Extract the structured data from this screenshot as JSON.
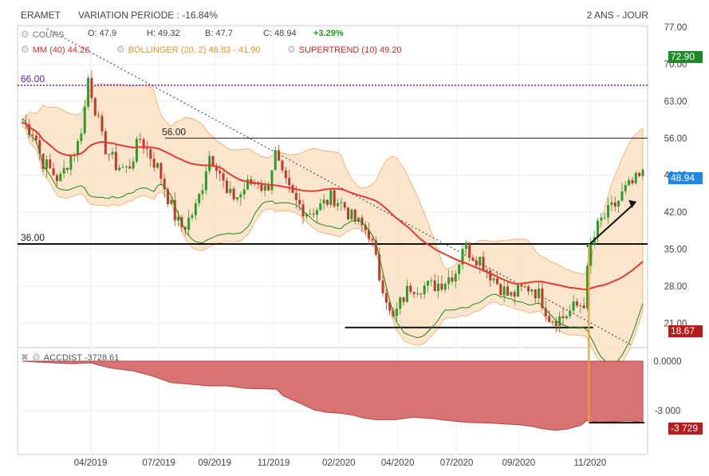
{
  "header": {
    "symbol": "ERAMET",
    "variation": "VARIATION PERIODE : -16.84%",
    "period": "2 ANS - JOUR"
  },
  "legend": {
    "cours_label": "COURS",
    "open": "O: 47.9",
    "high": "H: 49.32",
    "low": "B: 47.7",
    "close": "C: 48.94",
    "change": "+3.29%",
    "mm": "MM (40)",
    "mm_value": "44.26",
    "bollinger": "BOLLINGER (20, 2)",
    "bollinger_value": "48.83 - 41.90",
    "supertrend": "SUPERTREND (10)",
    "supertrend_value": "49.20",
    "accdist": "ACCDIST",
    "accdist_value": "-3728.61"
  },
  "colors": {
    "up": "#2a9d2a",
    "down": "#c0392b",
    "mm": "#e53935",
    "bollinger_fill": "#fbe3c8",
    "bollinger_line": "#f0a050",
    "supertrend": "#1b8a1b",
    "level_66": "#6a1bb5",
    "accdist_fill": "#d97373",
    "tag_green": "#1f8a2a",
    "tag_red": "#b71c1c",
    "tag_blue": "#1e88e5",
    "vline": "#f39c32"
  },
  "price_tags": {
    "top": "72.90",
    "current": "48.94",
    "bottom": "18.67",
    "accdist": "-3 729"
  },
  "annotations": {
    "level_66": "66.00",
    "level_56": "56.00",
    "level_36": "36.00"
  },
  "chart_data": [
    {
      "type": "candlestick",
      "ylim": [
        17,
        77
      ],
      "yticks": [
        "77.00",
        "70.00",
        "63.00",
        "56.00",
        "49.00",
        "42.00",
        "35.00",
        "28.00",
        "21.00"
      ],
      "xtick_labels": [
        "04/2019",
        "07/2019",
        "09/2019",
        "11/2019",
        "02/2020",
        "04/2020",
        "07/2020",
        "09/2020",
        "11/2020"
      ],
      "horizontal_levels": [
        66,
        56,
        36,
        20.2
      ],
      "close_path": [
        [
          0,
          59
        ],
        [
          0.02,
          57
        ],
        [
          0.03,
          52
        ],
        [
          0.045,
          50
        ],
        [
          0.06,
          48
        ],
        [
          0.075,
          52
        ],
        [
          0.09,
          55
        ],
        [
          0.1,
          61
        ],
        [
          0.105,
          68
        ],
        [
          0.115,
          63
        ],
        [
          0.13,
          55
        ],
        [
          0.15,
          51
        ],
        [
          0.17,
          50
        ],
        [
          0.19,
          56
        ],
        [
          0.2,
          54
        ],
        [
          0.22,
          50
        ],
        [
          0.24,
          43
        ],
        [
          0.25,
          40
        ],
        [
          0.26,
          39
        ],
        [
          0.28,
          43
        ],
        [
          0.29,
          47
        ],
        [
          0.3,
          53
        ],
        [
          0.315,
          51
        ],
        [
          0.33,
          45
        ],
        [
          0.35,
          45
        ],
        [
          0.36,
          47
        ],
        [
          0.38,
          48
        ],
        [
          0.39,
          46
        ],
        [
          0.4,
          48
        ],
        [
          0.405,
          54
        ],
        [
          0.42,
          48
        ],
        [
          0.44,
          44
        ],
        [
          0.46,
          42
        ],
        [
          0.48,
          43
        ],
        [
          0.5,
          45
        ],
        [
          0.52,
          43
        ],
        [
          0.53,
          41
        ],
        [
          0.55,
          39
        ],
        [
          0.56,
          38
        ],
        [
          0.575,
          30
        ],
        [
          0.585,
          27
        ],
        [
          0.595,
          21
        ],
        [
          0.61,
          25
        ],
        [
          0.625,
          28
        ],
        [
          0.645,
          28
        ],
        [
          0.66,
          28
        ],
        [
          0.68,
          29
        ],
        [
          0.7,
          31
        ],
        [
          0.71,
          36
        ],
        [
          0.725,
          34
        ],
        [
          0.74,
          33
        ],
        [
          0.75,
          31
        ],
        [
          0.77,
          28
        ],
        [
          0.785,
          26
        ],
        [
          0.8,
          27
        ],
        [
          0.82,
          28
        ],
        [
          0.835,
          26
        ],
        [
          0.85,
          22
        ],
        [
          0.87,
          22
        ],
        [
          0.89,
          24
        ],
        [
          0.905,
          25
        ],
        [
          0.915,
          35
        ],
        [
          0.93,
          40
        ],
        [
          0.945,
          42
        ],
        [
          0.96,
          44
        ],
        [
          0.97,
          46
        ],
        [
          0.98,
          47
        ],
        [
          1,
          48.94
        ]
      ]
    },
    {
      "type": "area",
      "name": "ACCDIST",
      "yticks": [
        "0.0000",
        "-3 000"
      ],
      "ylim": [
        -4300,
        0
      ],
      "values_path": [
        [
          0,
          0
        ],
        [
          0.03,
          -60
        ],
        [
          0.05,
          -100
        ],
        [
          0.08,
          -150
        ],
        [
          0.11,
          -100
        ],
        [
          0.14,
          -400
        ],
        [
          0.18,
          -600
        ],
        [
          0.21,
          -900
        ],
        [
          0.24,
          -1300
        ],
        [
          0.27,
          -1400
        ],
        [
          0.3,
          -1500
        ],
        [
          0.33,
          -1500
        ],
        [
          0.36,
          -1650
        ],
        [
          0.41,
          -1700
        ],
        [
          0.42,
          -2100
        ],
        [
          0.45,
          -2600
        ],
        [
          0.47,
          -2950
        ],
        [
          0.49,
          -3100
        ],
        [
          0.51,
          -3150
        ],
        [
          0.53,
          -3250
        ],
        [
          0.55,
          -3450
        ],
        [
          0.57,
          -3550
        ],
        [
          0.6,
          -3550
        ],
        [
          0.63,
          -3400
        ],
        [
          0.66,
          -3480
        ],
        [
          0.69,
          -3620
        ],
        [
          0.72,
          -3720
        ],
        [
          0.75,
          -3750
        ],
        [
          0.78,
          -3820
        ],
        [
          0.8,
          -3850
        ],
        [
          0.82,
          -3950
        ],
        [
          0.84,
          -4100
        ],
        [
          0.86,
          -4200
        ],
        [
          0.88,
          -4100
        ],
        [
          0.9,
          -3900
        ],
        [
          0.91,
          -3600
        ],
        [
          0.93,
          -3700
        ],
        [
          0.96,
          -3650
        ],
        [
          0.98,
          -3620
        ],
        [
          1,
          -3729
        ]
      ]
    }
  ]
}
